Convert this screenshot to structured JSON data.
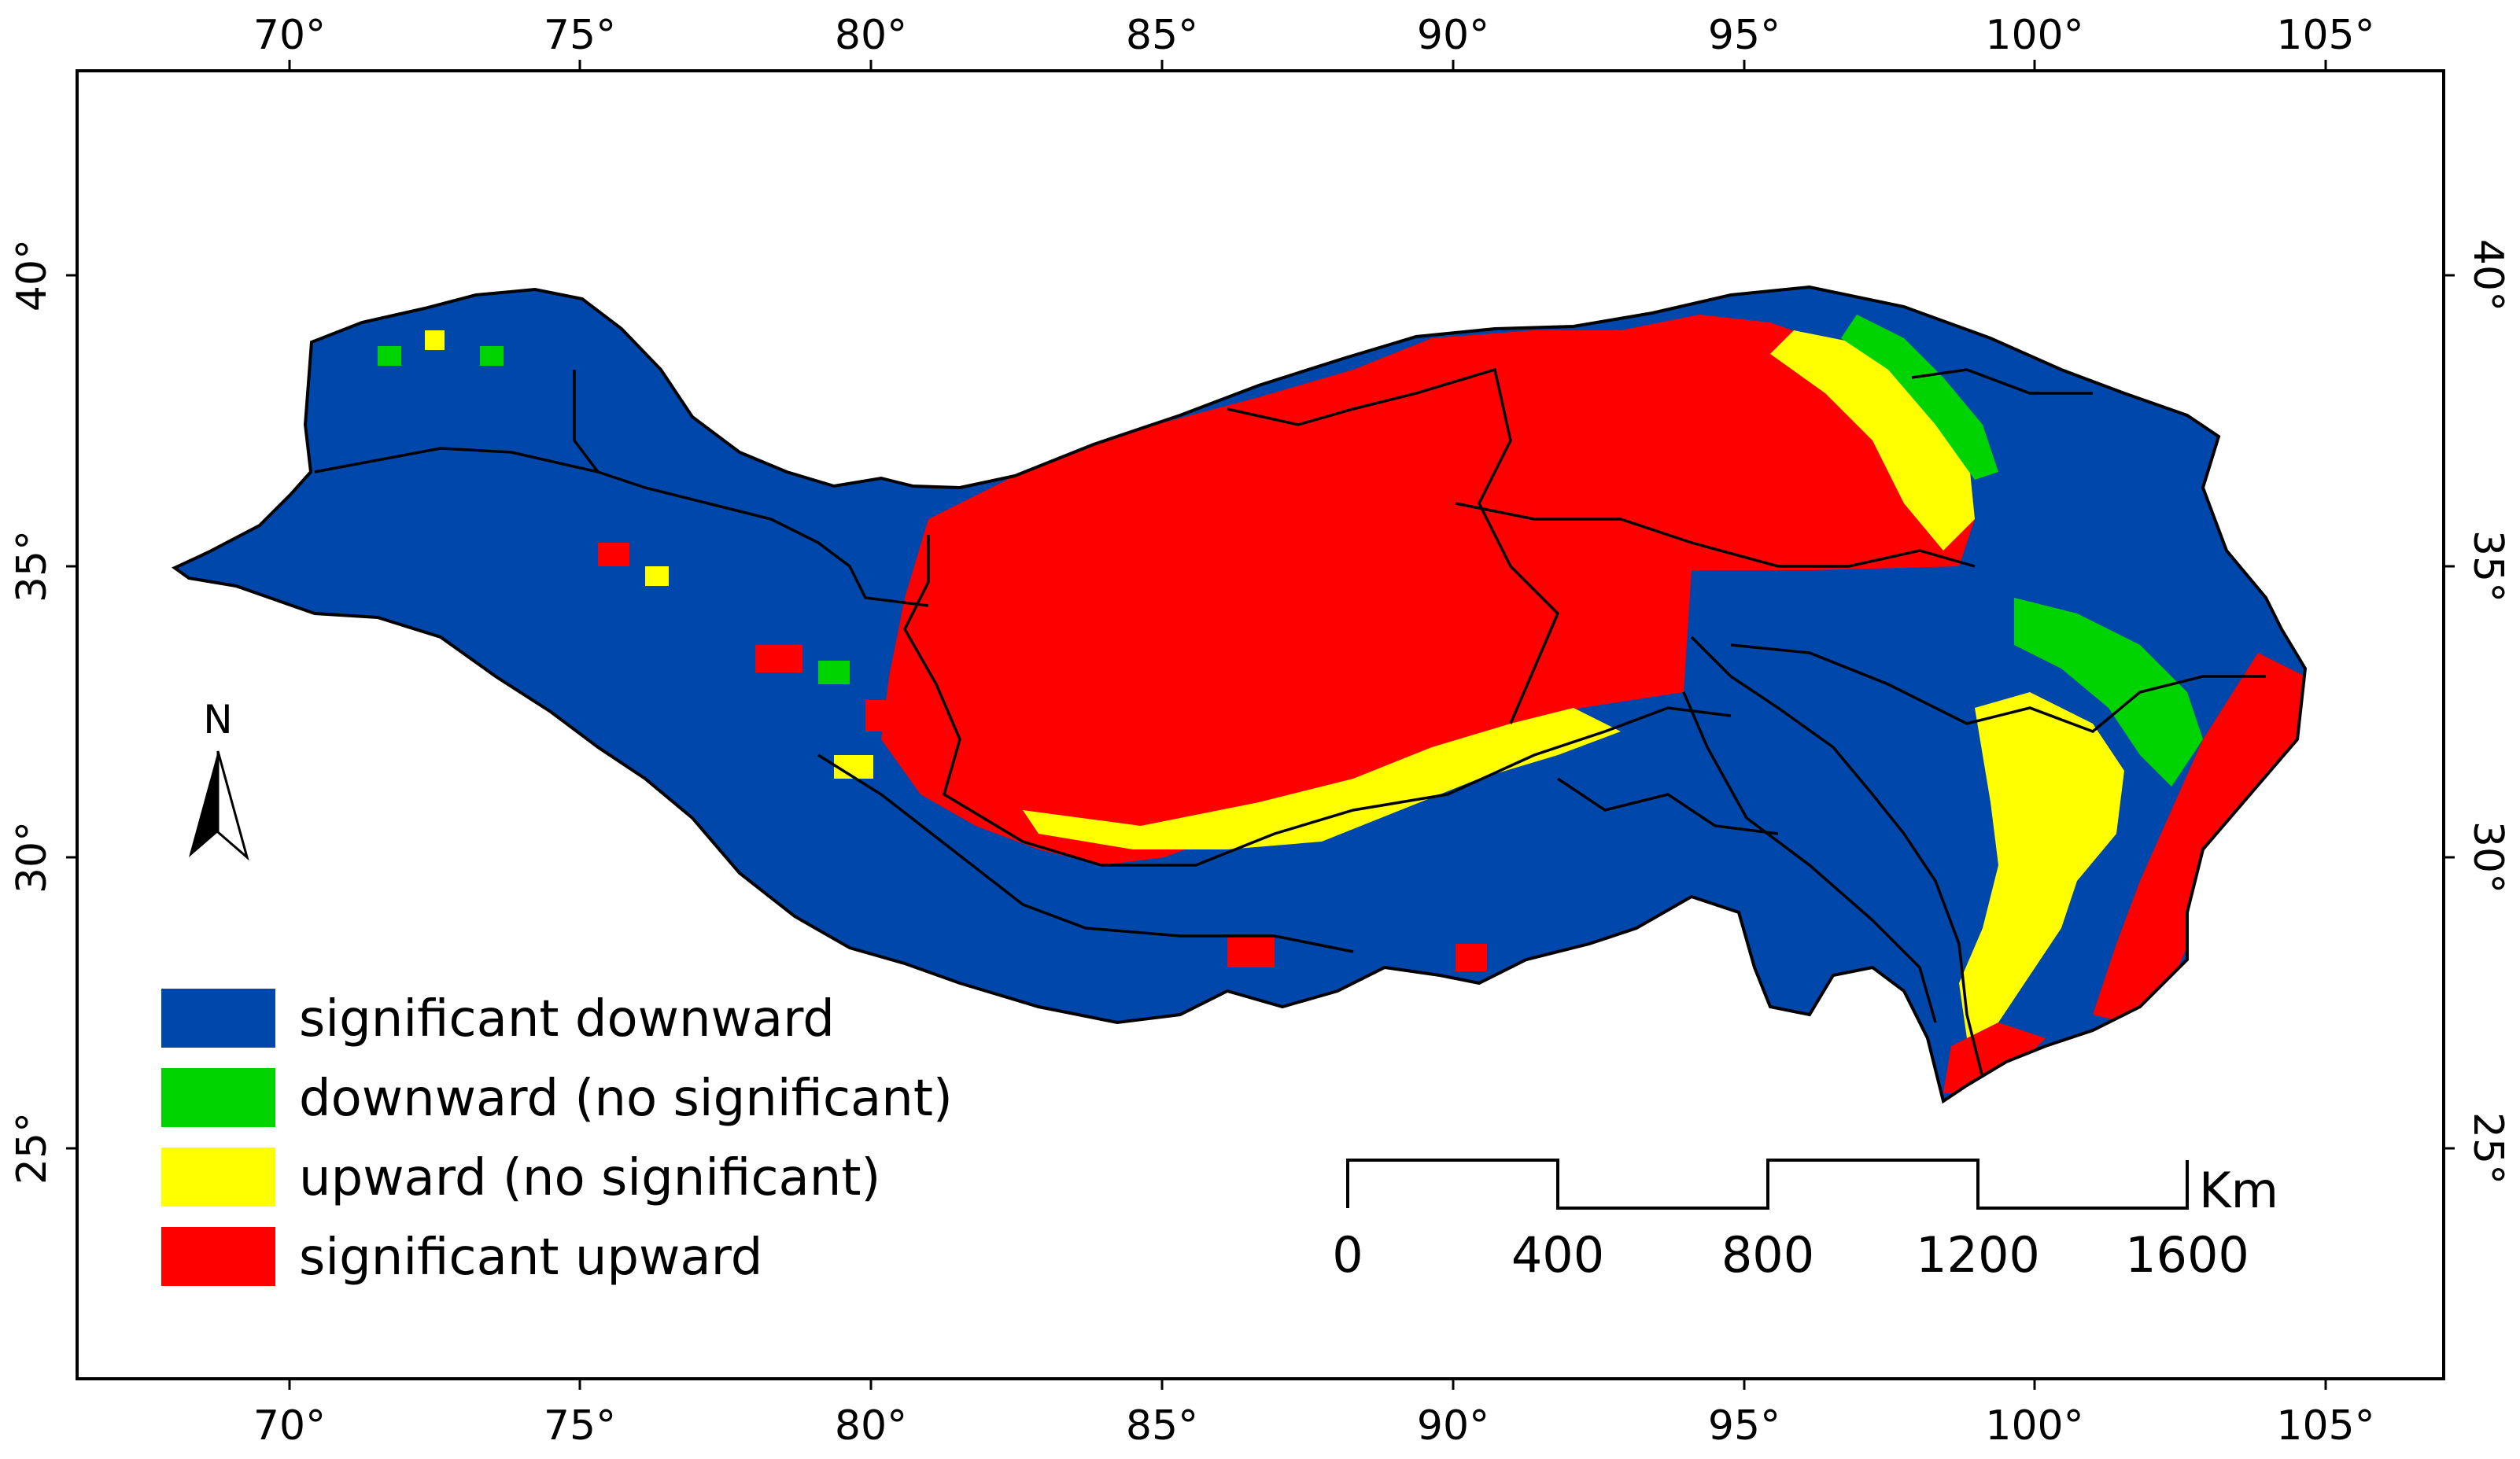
{
  "map": {
    "colors": {
      "significant_downward": "#0047AB",
      "downward_no_significant": "#00D400",
      "upward_no_significant": "#FFFF00",
      "significant_upward": "#FF0000",
      "boundary": "#000000"
    },
    "longitude_ticks": [
      "70°",
      "75°",
      "80°",
      "85°",
      "90°",
      "95°",
      "100°",
      "105°"
    ],
    "latitude_ticks": [
      "40°",
      "35°",
      "30°",
      "25°"
    ],
    "north_arrow": {
      "label": "N",
      "icon": "north-arrow-icon"
    },
    "legend": {
      "items": [
        {
          "key": "significant_downward",
          "label": "significant downward"
        },
        {
          "key": "downward_no_significant",
          "label": "downward (no significant)"
        },
        {
          "key": "upward_no_significant",
          "label": "upward (no significant)"
        },
        {
          "key": "significant_upward",
          "label": "significant upward"
        }
      ]
    },
    "scale_bar": {
      "unit": "Km",
      "labels": [
        "0",
        "400",
        "800",
        "1200",
        "1600"
      ]
    }
  }
}
